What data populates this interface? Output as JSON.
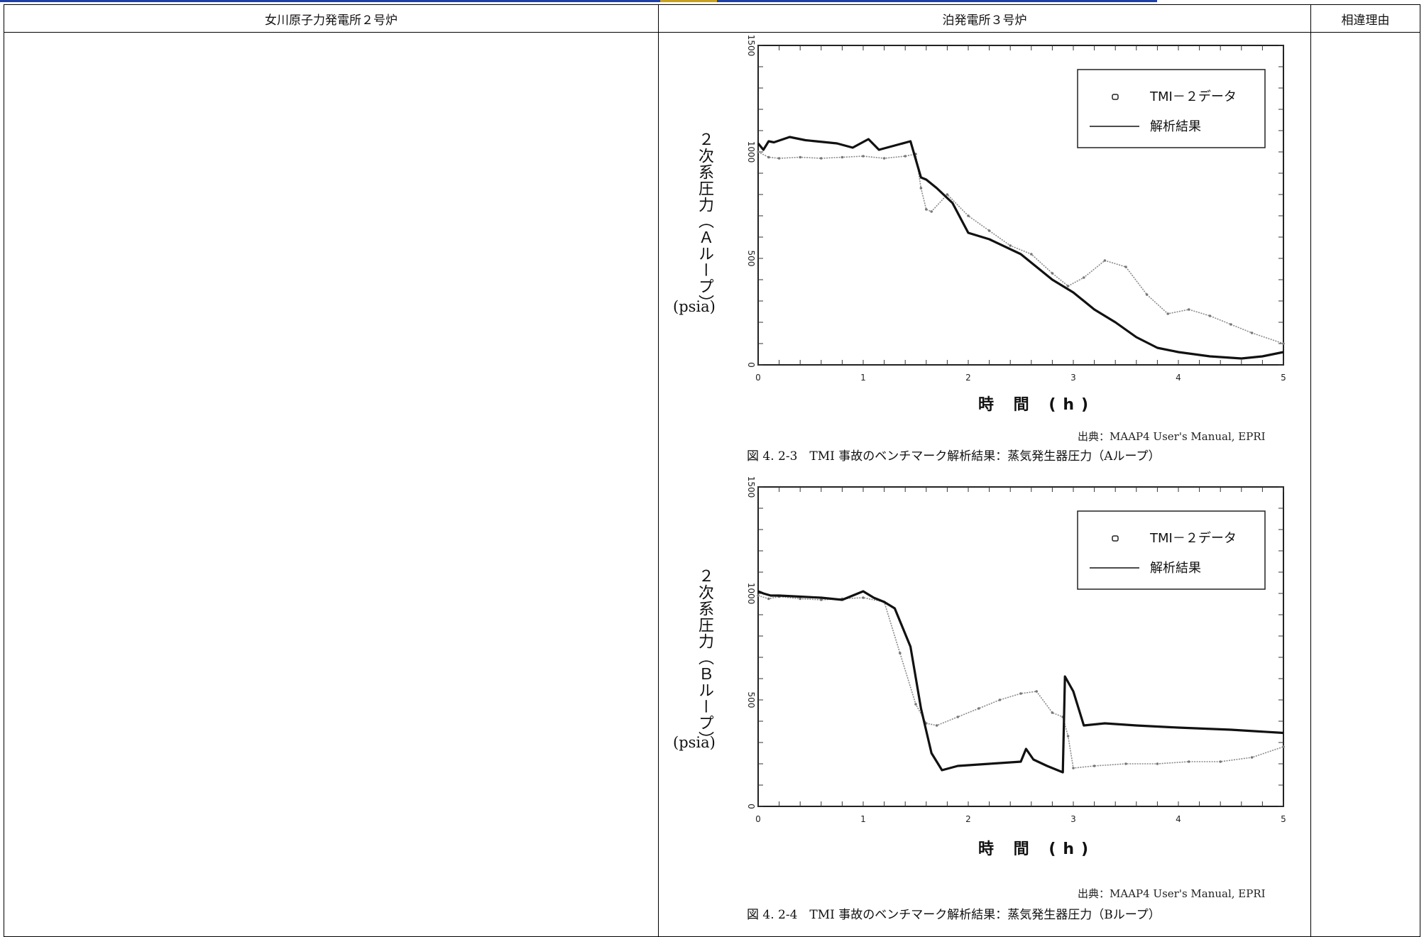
{
  "header": {
    "col1": "女川原子力発電所２号炉",
    "col2": "泊発電所３号炉",
    "col3": "相違理由"
  },
  "figures": [
    {
      "ylabel": "２次系圧力（Ａループ）",
      "yunit": "(psia)",
      "xlabel": "時 間 (h)",
      "legend": [
        "TMI－２データ",
        "解析結果"
      ],
      "source": "出典：MAAP4 User's Manual, EPRI",
      "caption": "図 4. 2-3　TMI 事故のベンチマーク解析結果：蒸気発生器圧力（Aループ）"
    },
    {
      "ylabel": "２次系圧力（Ｂループ）",
      "yunit": "(psia)",
      "xlabel": "時 間 (h)",
      "legend": [
        "TMI－２データ",
        "解析結果"
      ],
      "source": "出典：MAAP4 User's Manual, EPRI",
      "caption": "図 4. 2-4　TMI 事故のベンチマーク解析結果：蒸気発生器圧力（Bループ）"
    }
  ],
  "chart_data": [
    {
      "type": "line",
      "xlabel": "時 間 (h)",
      "ylabel": "２次系圧力（Ａループ） (psia)",
      "xlim": [
        0,
        5
      ],
      "ylim": [
        0,
        1500
      ],
      "xticks": [
        0,
        1,
        2,
        3,
        4,
        5
      ],
      "yticks": [
        0,
        500,
        1000,
        1500
      ],
      "series": [
        {
          "name": "TMI－２データ",
          "style": "markers",
          "x": [
            0.0,
            0.1,
            0.2,
            0.4,
            0.6,
            0.8,
            1.0,
            1.2,
            1.4,
            1.5,
            1.55,
            1.6,
            1.65,
            1.8,
            2.0,
            2.2,
            2.4,
            2.6,
            2.8,
            2.95,
            3.1,
            3.3,
            3.5,
            3.7,
            3.9,
            4.1,
            4.3,
            4.5,
            4.7,
            5.0
          ],
          "y": [
            1000,
            975,
            970,
            975,
            970,
            975,
            980,
            970,
            980,
            990,
            830,
            730,
            720,
            800,
            700,
            630,
            560,
            520,
            430,
            370,
            410,
            490,
            460,
            330,
            240,
            260,
            230,
            190,
            150,
            100
          ]
        },
        {
          "name": "解析結果",
          "style": "line",
          "x": [
            0.0,
            0.05,
            0.1,
            0.15,
            0.3,
            0.45,
            0.55,
            0.75,
            0.9,
            1.05,
            1.15,
            1.3,
            1.45,
            1.55,
            1.6,
            1.7,
            1.85,
            2.0,
            2.2,
            2.5,
            2.8,
            3.0,
            3.2,
            3.4,
            3.6,
            3.72,
            3.8,
            4.0,
            4.3,
            4.6,
            4.8,
            5.0
          ],
          "y": [
            1040,
            1010,
            1050,
            1045,
            1070,
            1055,
            1050,
            1040,
            1020,
            1060,
            1010,
            1030,
            1050,
            880,
            870,
            830,
            760,
            620,
            590,
            520,
            400,
            340,
            260,
            200,
            130,
            100,
            80,
            60,
            40,
            30,
            40,
            60
          ]
        }
      ]
    },
    {
      "type": "line",
      "xlabel": "時 間 (h)",
      "ylabel": "２次系圧力（Ｂループ） (psia)",
      "xlim": [
        0,
        5
      ],
      "ylim": [
        0,
        1500
      ],
      "xticks": [
        0,
        1,
        2,
        3,
        4,
        5
      ],
      "yticks": [
        0,
        500,
        1000,
        1500
      ],
      "series": [
        {
          "name": "TMI－２データ",
          "style": "markers",
          "x": [
            0.0,
            0.1,
            0.2,
            0.4,
            0.6,
            0.8,
            1.0,
            1.2,
            1.35,
            1.5,
            1.6,
            1.7,
            1.9,
            2.1,
            2.3,
            2.5,
            2.65,
            2.8,
            2.9,
            2.95,
            3.0,
            3.2,
            3.5,
            3.8,
            4.1,
            4.4,
            4.7,
            5.0
          ],
          "y": [
            990,
            975,
            985,
            975,
            970,
            975,
            980,
            960,
            720,
            480,
            390,
            380,
            420,
            460,
            500,
            530,
            540,
            440,
            420,
            330,
            180,
            190,
            200,
            200,
            210,
            210,
            230,
            280
          ]
        },
        {
          "name": "解析結果",
          "style": "line",
          "x": [
            0.0,
            0.05,
            0.12,
            0.2,
            0.4,
            0.6,
            0.8,
            1.0,
            1.1,
            1.2,
            1.3,
            1.45,
            1.55,
            1.65,
            1.75,
            1.9,
            2.2,
            2.5,
            2.55,
            2.62,
            2.75,
            2.9,
            2.92,
            3.0,
            3.1,
            3.3,
            3.6,
            4.0,
            4.5,
            5.0
          ],
          "y": [
            1010,
            1000,
            990,
            990,
            985,
            980,
            970,
            1010,
            980,
            960,
            930,
            750,
            460,
            250,
            170,
            190,
            200,
            210,
            270,
            220,
            190,
            160,
            610,
            540,
            380,
            390,
            380,
            370,
            360,
            345
          ]
        }
      ]
    }
  ]
}
